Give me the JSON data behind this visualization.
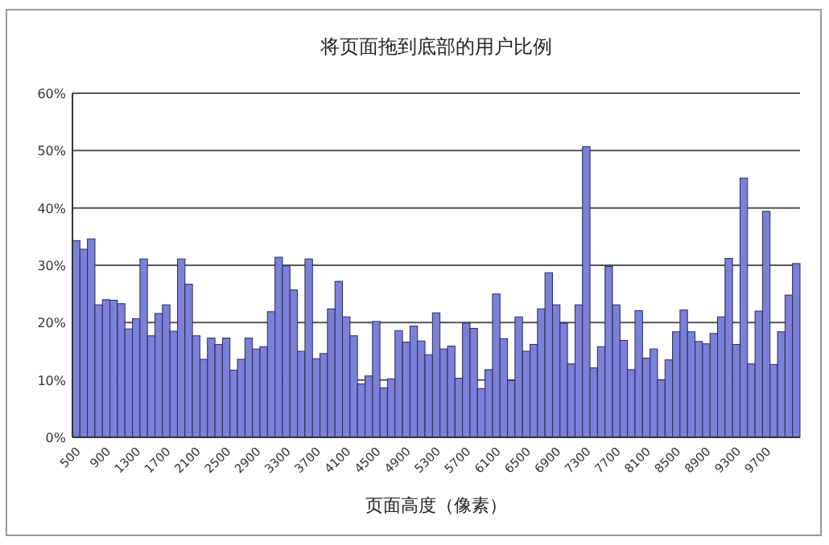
{
  "chart_data": {
    "type": "bar",
    "title": "将页面拖到底部的用户比例",
    "xlabel": "页面高度（像素）",
    "categories": [
      "500",
      null,
      null,
      null,
      "900",
      null,
      null,
      null,
      "1300",
      null,
      null,
      null,
      "1700",
      null,
      null,
      null,
      "2100",
      null,
      null,
      null,
      "2500",
      null,
      null,
      null,
      "2900",
      null,
      null,
      null,
      "3300",
      null,
      null,
      null,
      "3700",
      null,
      null,
      null,
      "4100",
      null,
      null,
      null,
      "4500",
      null,
      null,
      null,
      "4900",
      null,
      null,
      null,
      "5300",
      null,
      null,
      null,
      "5700",
      null,
      null,
      null,
      "6100",
      null,
      null,
      null,
      "6500",
      null,
      null,
      null,
      "6900",
      null,
      null,
      null,
      "7300",
      null,
      null,
      null,
      "7700",
      null,
      null,
      null,
      "8100",
      null,
      null,
      null,
      "8500",
      null,
      null,
      null,
      "8900",
      null,
      null,
      null,
      "9300",
      null,
      null,
      null,
      "9700",
      null,
      null,
      null,
      null
    ],
    "values": [
      34.3,
      32.8,
      34.6,
      23.1,
      24.0,
      23.9,
      23.3,
      18.9,
      20.7,
      31.1,
      17.7,
      21.6,
      23.1,
      18.5,
      31.1,
      26.7,
      17.7,
      13.6,
      17.3,
      16.2,
      17.3,
      11.7,
      13.6,
      17.3,
      15.4,
      15.8,
      21.9,
      31.4,
      29.9,
      25.7,
      15.0,
      31.1,
      13.7,
      14.6,
      22.4,
      27.2,
      21.0,
      17.7,
      9.3,
      10.7,
      20.2,
      8.6,
      10.2,
      18.6,
      16.6,
      19.4,
      16.8,
      14.4,
      21.7,
      15.4,
      15.9,
      10.3,
      19.9,
      19.0,
      8.5,
      11.8,
      25.0,
      17.2,
      9.9,
      21.0,
      15.0,
      16.2,
      22.4,
      28.7,
      23.1,
      19.9,
      12.8,
      23.1,
      50.7,
      12.1,
      15.8,
      29.8,
      23.1,
      16.9,
      11.8,
      22.1,
      13.8,
      15.4,
      10.0,
      13.5,
      18.4,
      22.2,
      18.4,
      16.7,
      16.3,
      18.1,
      21.0,
      31.2,
      16.2,
      45.2,
      12.8,
      22.0,
      39.4,
      12.7,
      18.4,
      24.8,
      30.3
    ],
    "color": "#7b80d8",
    "ylim": [
      0,
      60
    ],
    "yticks": [
      {
        "value": 0,
        "label": "0%"
      },
      {
        "value": 10,
        "label": "10%"
      },
      {
        "value": 20,
        "label": "20%"
      },
      {
        "value": 30,
        "label": "30%"
      },
      {
        "value": 40,
        "label": "40%"
      },
      {
        "value": 50,
        "label": "50%"
      },
      {
        "value": 60,
        "label": "60%"
      }
    ],
    "grid": "y"
  }
}
